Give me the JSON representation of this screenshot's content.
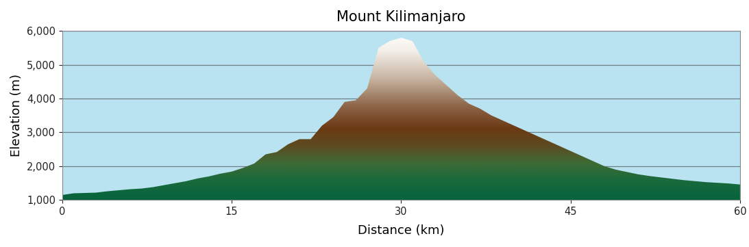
{
  "chart_data": {
    "type": "area",
    "title": "Mount Kilimanjaro",
    "x_label": "Distance (km)",
    "y_label": "Elevation (m)",
    "x": [
      0,
      1,
      2,
      3,
      4,
      5,
      6,
      7,
      8,
      9,
      10,
      11,
      12,
      13,
      14,
      15,
      16,
      17,
      18,
      19,
      20,
      21,
      22,
      23,
      24,
      25,
      26,
      27,
      28,
      29,
      30,
      31,
      32,
      33,
      34,
      35,
      36,
      37,
      38,
      39,
      40,
      41,
      42,
      43,
      44,
      45,
      46,
      47,
      48,
      49,
      50,
      51,
      52,
      53,
      54,
      55,
      56,
      57,
      58,
      59,
      60
    ],
    "values": [
      1150,
      1200,
      1210,
      1220,
      1260,
      1290,
      1320,
      1340,
      1380,
      1440,
      1500,
      1560,
      1640,
      1700,
      1780,
      1840,
      1950,
      2080,
      2350,
      2420,
      2650,
      2800,
      2800,
      3200,
      3450,
      3900,
      3950,
      4300,
      5500,
      5700,
      5800,
      5700,
      5100,
      4700,
      4400,
      4100,
      3850,
      3700,
      3500,
      3350,
      3200,
      3050,
      2900,
      2750,
      2600,
      2450,
      2300,
      2150,
      2000,
      1900,
      1830,
      1760,
      1710,
      1670,
      1630,
      1590,
      1560,
      1530,
      1510,
      1490,
      1460
    ],
    "xlim": [
      0,
      60
    ],
    "ylim": [
      1000,
      6000
    ],
    "xticks": [
      0,
      15,
      30,
      45,
      60
    ],
    "yticks": [
      {
        "value": 1000,
        "label": "1,000"
      },
      {
        "value": 2000,
        "label": "2,000"
      },
      {
        "value": 3000,
        "label": "3,000"
      },
      {
        "value": 4000,
        "label": "4,000"
      },
      {
        "value": 5000,
        "label": "5,000"
      },
      {
        "value": 6000,
        "label": "6,000"
      }
    ],
    "grid": true
  }
}
